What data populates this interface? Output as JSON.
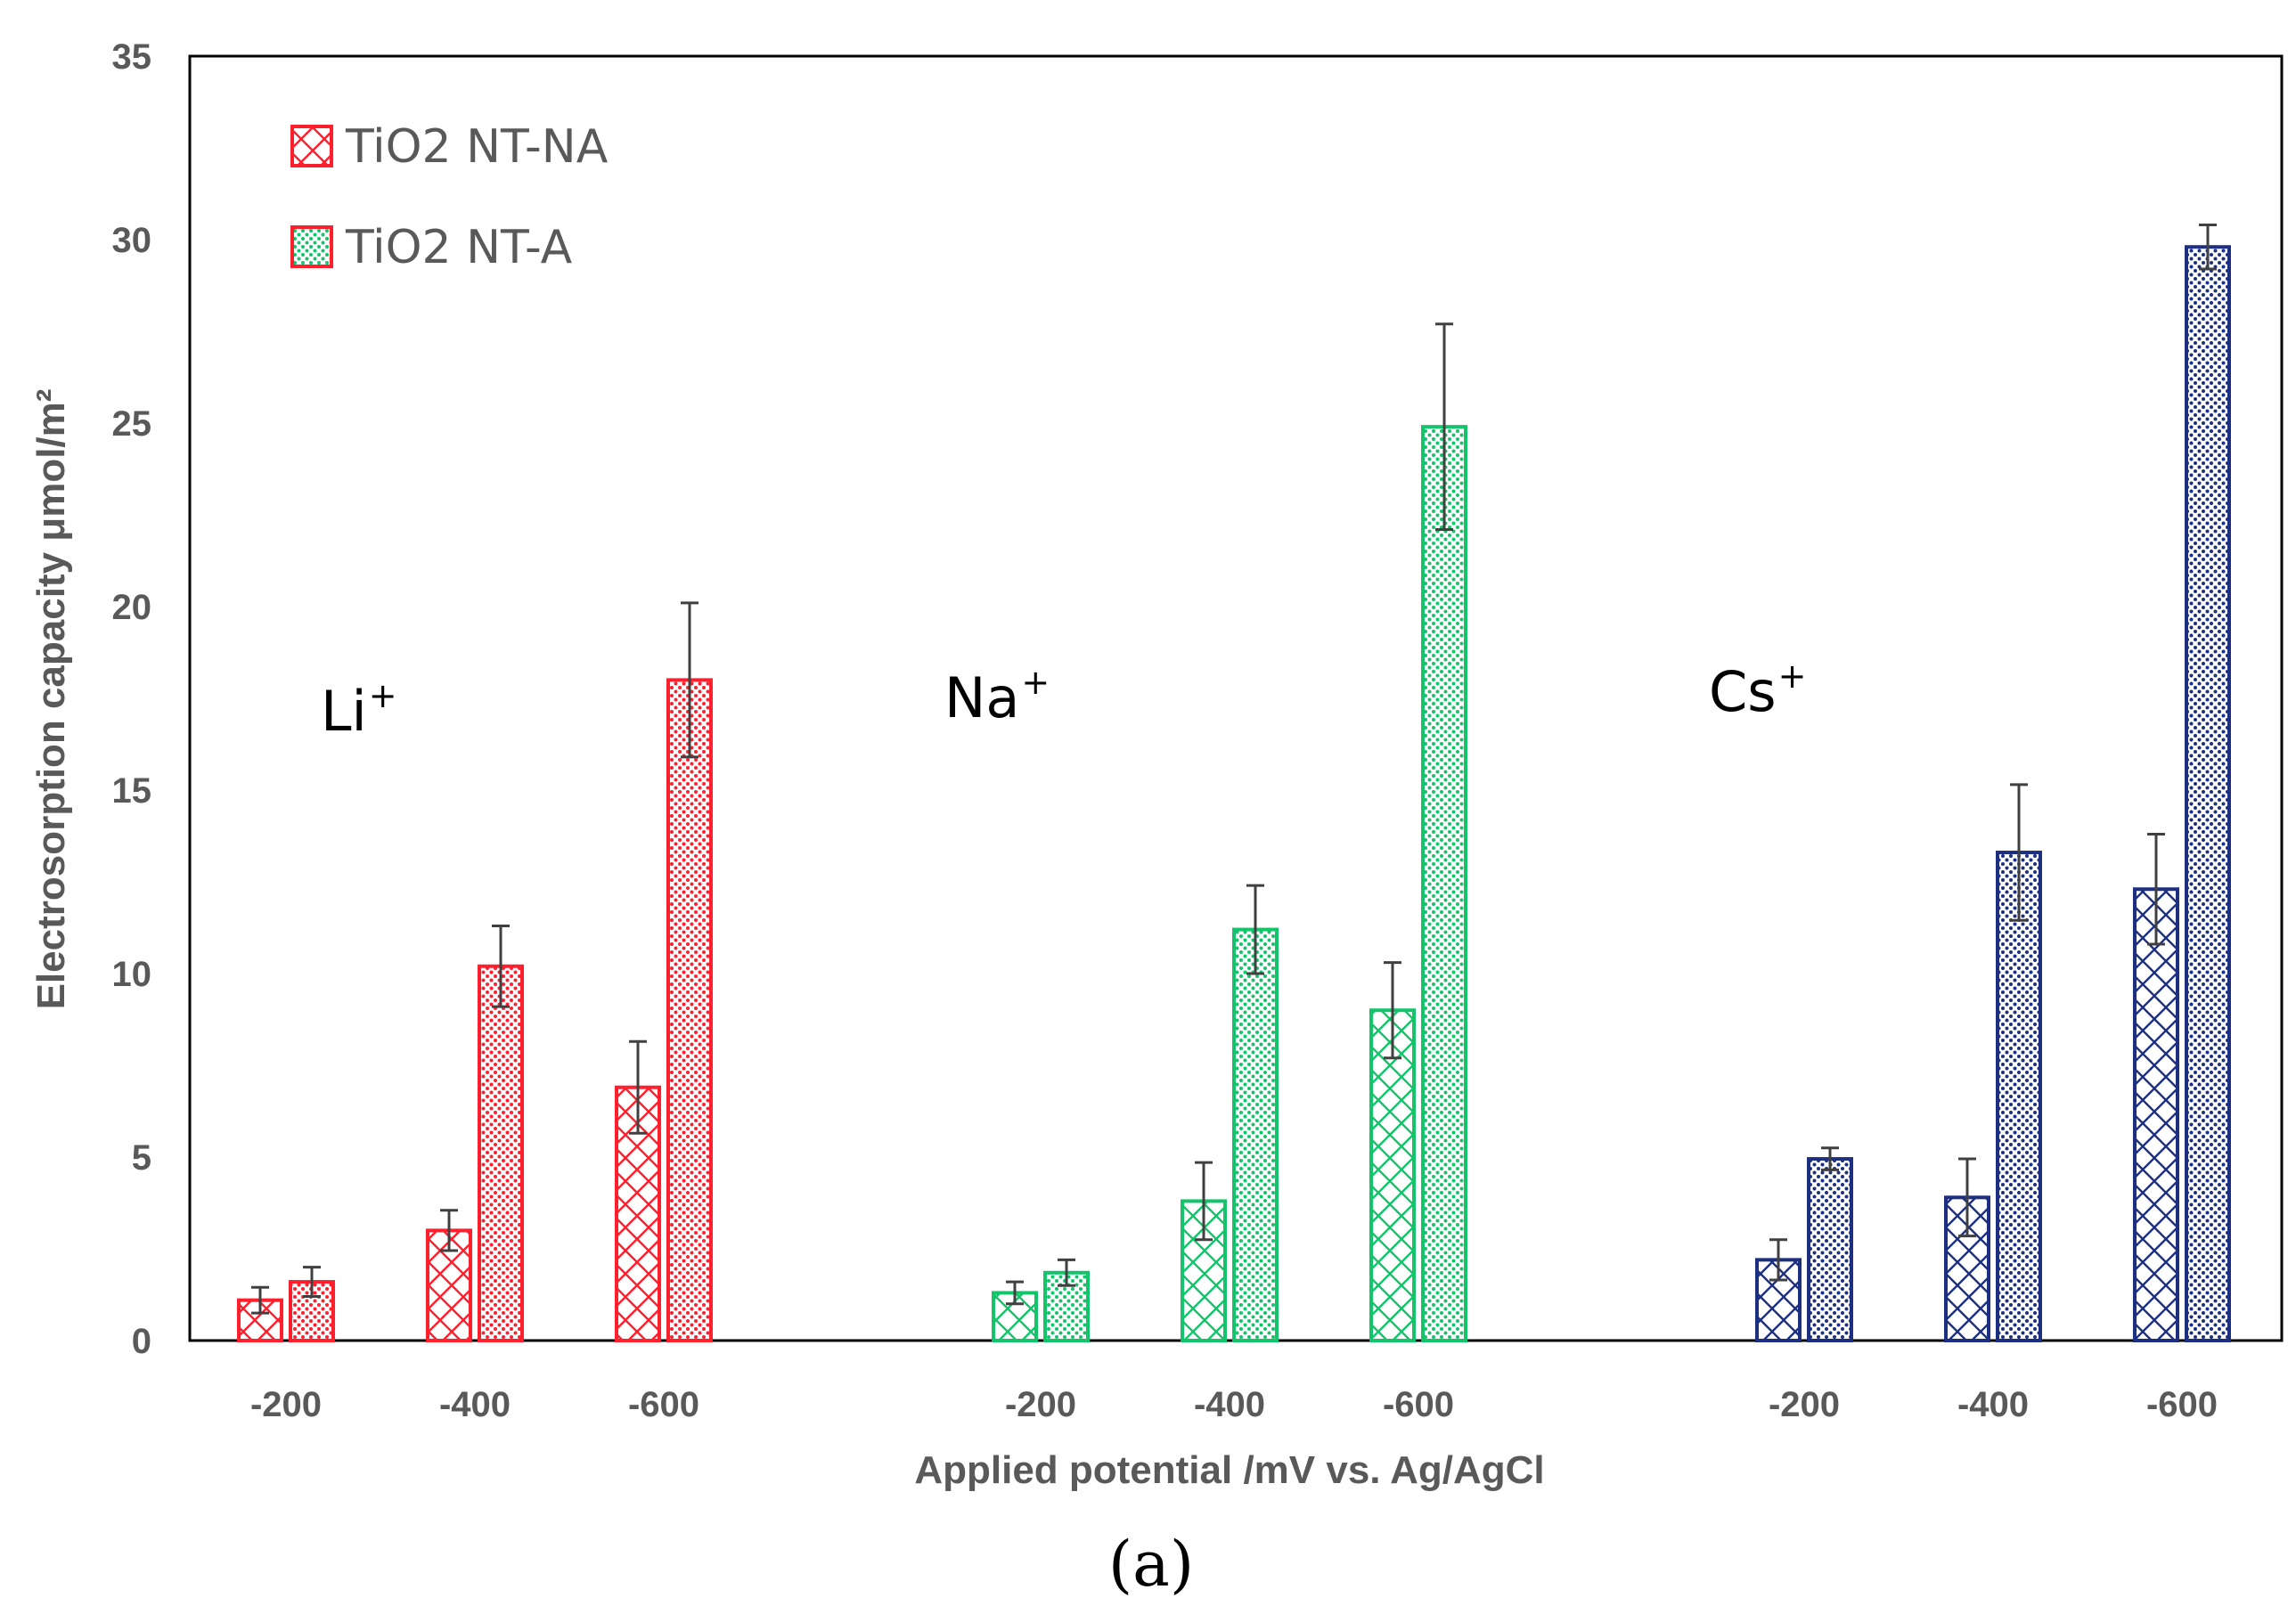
{
  "chart_data": {
    "type": "bar",
    "title": "",
    "xlabel": "Applied potential /mV vs. Ag/AgCl",
    "ylabel": "Electrosorption capacity μmol/m²",
    "ylim": [
      0,
      35
    ],
    "yticks": [
      "0",
      "5",
      "10",
      "15",
      "20",
      "25",
      "30",
      "35"
    ],
    "caption": "(a)",
    "legend": {
      "position": "top-left",
      "entries": [
        {
          "name": "TiO2 NT-NA",
          "pattern": "crosshatch"
        },
        {
          "name": "TiO2 NT-A",
          "pattern": "dotted"
        }
      ]
    },
    "groups": [
      {
        "ion": "Li",
        "ion_sup": "+",
        "color": "#ff1f2d",
        "categories": [
          "-200",
          "-400",
          "-600"
        ],
        "series": [
          {
            "name": "TiO2 NT-NA",
            "values": [
              1.1,
              3.0,
              6.9
            ],
            "errors": [
              0.35,
              0.55,
              1.25
            ]
          },
          {
            "name": "TiO2 NT-A",
            "values": [
              1.6,
              10.2,
              18.0
            ],
            "errors": [
              0.4,
              1.1,
              2.1
            ]
          }
        ]
      },
      {
        "ion": "Na",
        "ion_sup": "+",
        "color": "#14c46a",
        "categories": [
          "-200",
          "-400",
          "-600"
        ],
        "series": [
          {
            "name": "TiO2 NT-NA",
            "values": [
              1.3,
              3.8,
              9.0
            ],
            "errors": [
              0.3,
              1.05,
              1.3
            ]
          },
          {
            "name": "TiO2 NT-A",
            "values": [
              1.85,
              11.2,
              24.9
            ],
            "errors": [
              0.35,
              1.2,
              2.8
            ]
          }
        ]
      },
      {
        "ion": "Cs",
        "ion_sup": "+",
        "color": "#1c2f80",
        "categories": [
          "-200",
          "-400",
          "-600"
        ],
        "series": [
          {
            "name": "TiO2 NT-NA",
            "values": [
              2.2,
              3.9,
              12.3
            ],
            "errors": [
              0.55,
              1.05,
              1.5
            ]
          },
          {
            "name": "TiO2 NT-A",
            "values": [
              4.95,
              13.3,
              29.8
            ],
            "errors": [
              0.3,
              1.85,
              0.6
            ]
          }
        ]
      }
    ]
  }
}
